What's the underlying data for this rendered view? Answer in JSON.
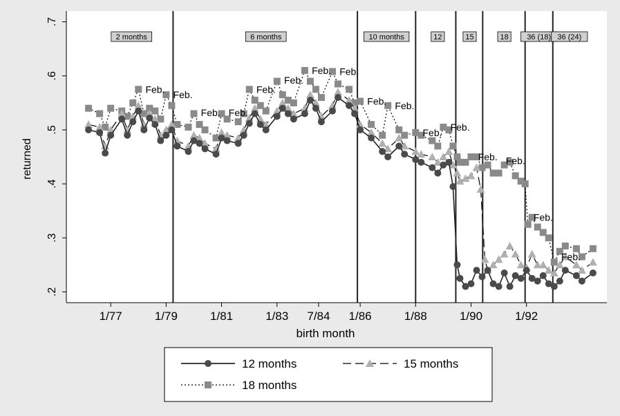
{
  "chart_data": {
    "type": "line",
    "xlabel": "birth month",
    "ylabel": "returned",
    "ylim": [
      0.18,
      0.72
    ],
    "y_ticks": [
      0.2,
      0.3,
      0.4,
      0.5,
      0.6,
      0.7
    ],
    "y_tick_labels": [
      ".2",
      ".3",
      ".4",
      ".5",
      ".6",
      ".7"
    ],
    "x_ticks": [
      1977.0,
      1979.0,
      1981.0,
      1983.0,
      1984.5,
      1986.0,
      1988.0,
      1990.0,
      1992.0
    ],
    "x_tick_labels": [
      "1/77",
      "1/79",
      "1/81",
      "1/83",
      "7/84",
      "1/86",
      "1/88",
      "1/90",
      "1/92"
    ],
    "xlim": [
      1975.4,
      1994.9
    ],
    "grid": false,
    "legend_position": "bottom",
    "vlines": [
      1979.25,
      1985.9,
      1988.0,
      1989.45,
      1990.42,
      1991.95,
      1992.95
    ],
    "regimes": [
      {
        "label": "2 months",
        "x": 1977.75
      },
      {
        "label": "6 months",
        "x": 1982.6
      },
      {
        "label": "10 months",
        "x": 1986.95
      },
      {
        "label": "12",
        "x": 1988.8
      },
      {
        "label": "15",
        "x": 1989.95
      },
      {
        "label": "18",
        "x": 1991.2
      },
      {
        "label": "36 (18)",
        "x": 1992.45
      },
      {
        "label": "36 (24)",
        "x": 1993.55
      }
    ],
    "annotations": [
      {
        "text": "Feb.",
        "x": 1978.08,
        "y": 0.575
      },
      {
        "text": "Feb.",
        "x": 1979.08,
        "y": 0.565
      },
      {
        "text": "Feb.",
        "x": 1980.08,
        "y": 0.532
      },
      {
        "text": "Feb.",
        "x": 1981.08,
        "y": 0.532
      },
      {
        "text": "Feb.",
        "x": 1982.08,
        "y": 0.575
      },
      {
        "text": "Feb.",
        "x": 1983.08,
        "y": 0.592
      },
      {
        "text": "Feb.",
        "x": 1984.08,
        "y": 0.61
      },
      {
        "text": "Feb.",
        "x": 1985.08,
        "y": 0.608
      },
      {
        "text": "Feb.",
        "x": 1986.08,
        "y": 0.553
      },
      {
        "text": "Feb.",
        "x": 1987.08,
        "y": 0.545
      },
      {
        "text": "Feb.",
        "x": 1988.08,
        "y": 0.495
      },
      {
        "text": "Feb.",
        "x": 1989.08,
        "y": 0.505
      },
      {
        "text": "Feb.",
        "x": 1990.08,
        "y": 0.45
      },
      {
        "text": "Feb.",
        "x": 1991.08,
        "y": 0.443
      },
      {
        "text": "Feb.",
        "x": 1992.08,
        "y": 0.338
      },
      {
        "text": "Feb.",
        "x": 1993.08,
        "y": 0.265
      }
    ],
    "series": [
      {
        "name": "12 months",
        "color": "#4a4a4a",
        "marker": "circle",
        "dash": "solid",
        "points": [
          [
            1976.2,
            0.5
          ],
          [
            1976.6,
            0.495
          ],
          [
            1976.8,
            0.457
          ],
          [
            1977.0,
            0.49
          ],
          [
            1977.4,
            0.52
          ],
          [
            1977.6,
            0.49
          ],
          [
            1977.8,
            0.515
          ],
          [
            1978.0,
            0.535
          ],
          [
            1978.2,
            0.5
          ],
          [
            1978.4,
            0.522
          ],
          [
            1978.6,
            0.51
          ],
          [
            1978.8,
            0.48
          ],
          [
            1979.0,
            0.49
          ],
          [
            1979.2,
            0.5
          ],
          [
            1979.4,
            0.47
          ],
          [
            1979.8,
            0.46
          ],
          [
            1980.0,
            0.48
          ],
          [
            1980.2,
            0.475
          ],
          [
            1980.4,
            0.465
          ],
          [
            1980.8,
            0.455
          ],
          [
            1981.0,
            0.485
          ],
          [
            1981.2,
            0.48
          ],
          [
            1981.6,
            0.475
          ],
          [
            1981.8,
            0.49
          ],
          [
            1982.0,
            0.512
          ],
          [
            1982.2,
            0.53
          ],
          [
            1982.4,
            0.51
          ],
          [
            1982.6,
            0.5
          ],
          [
            1983.0,
            0.525
          ],
          [
            1983.2,
            0.54
          ],
          [
            1983.4,
            0.53
          ],
          [
            1983.6,
            0.52
          ],
          [
            1984.0,
            0.53
          ],
          [
            1984.2,
            0.555
          ],
          [
            1984.4,
            0.54
          ],
          [
            1984.6,
            0.515
          ],
          [
            1985.0,
            0.535
          ],
          [
            1985.2,
            0.56
          ],
          [
            1985.6,
            0.545
          ],
          [
            1985.8,
            0.53
          ],
          [
            1986.0,
            0.5
          ],
          [
            1986.4,
            0.485
          ],
          [
            1986.8,
            0.46
          ],
          [
            1987.0,
            0.45
          ],
          [
            1987.4,
            0.47
          ],
          [
            1987.6,
            0.455
          ],
          [
            1988.0,
            0.445
          ],
          [
            1988.2,
            0.44
          ],
          [
            1988.6,
            0.43
          ],
          [
            1988.8,
            0.42
          ],
          [
            1989.0,
            0.435
          ],
          [
            1989.2,
            0.44
          ],
          [
            1989.35,
            0.395
          ],
          [
            1989.5,
            0.25
          ],
          [
            1989.6,
            0.225
          ],
          [
            1989.8,
            0.21
          ],
          [
            1990.0,
            0.215
          ],
          [
            1990.2,
            0.24
          ],
          [
            1990.4,
            0.228
          ],
          [
            1990.6,
            0.24
          ],
          [
            1990.8,
            0.215
          ],
          [
            1991.0,
            0.21
          ],
          [
            1991.2,
            0.235
          ],
          [
            1991.4,
            0.21
          ],
          [
            1991.6,
            0.23
          ],
          [
            1991.8,
            0.225
          ],
          [
            1992.0,
            0.24
          ],
          [
            1992.2,
            0.225
          ],
          [
            1992.4,
            0.22
          ],
          [
            1992.6,
            0.23
          ],
          [
            1992.8,
            0.215
          ],
          [
            1993.0,
            0.21
          ],
          [
            1993.2,
            0.22
          ],
          [
            1993.4,
            0.24
          ],
          [
            1993.8,
            0.23
          ],
          [
            1994.0,
            0.22
          ],
          [
            1994.4,
            0.235
          ]
        ]
      },
      {
        "name": "15 months",
        "color": "#b0b0b0",
        "marker": "triangle",
        "dash": "longdash",
        "points": [
          [
            1976.2,
            0.51
          ],
          [
            1976.6,
            0.505
          ],
          [
            1976.8,
            0.47
          ],
          [
            1977.0,
            0.5
          ],
          [
            1977.4,
            0.53
          ],
          [
            1977.6,
            0.5
          ],
          [
            1977.8,
            0.525
          ],
          [
            1978.0,
            0.545
          ],
          [
            1978.2,
            0.51
          ],
          [
            1978.4,
            0.53
          ],
          [
            1978.6,
            0.52
          ],
          [
            1978.8,
            0.49
          ],
          [
            1979.0,
            0.5
          ],
          [
            1979.2,
            0.51
          ],
          [
            1979.4,
            0.48
          ],
          [
            1979.8,
            0.47
          ],
          [
            1980.0,
            0.49
          ],
          [
            1980.2,
            0.485
          ],
          [
            1980.4,
            0.475
          ],
          [
            1980.8,
            0.465
          ],
          [
            1981.0,
            0.495
          ],
          [
            1981.2,
            0.49
          ],
          [
            1981.6,
            0.485
          ],
          [
            1981.8,
            0.5
          ],
          [
            1982.0,
            0.522
          ],
          [
            1982.2,
            0.54
          ],
          [
            1982.4,
            0.52
          ],
          [
            1982.6,
            0.51
          ],
          [
            1983.0,
            0.535
          ],
          [
            1983.2,
            0.55
          ],
          [
            1983.4,
            0.54
          ],
          [
            1983.6,
            0.53
          ],
          [
            1984.0,
            0.54
          ],
          [
            1984.2,
            0.565
          ],
          [
            1984.4,
            0.55
          ],
          [
            1984.6,
            0.525
          ],
          [
            1985.0,
            0.545
          ],
          [
            1985.2,
            0.57
          ],
          [
            1985.6,
            0.555
          ],
          [
            1985.8,
            0.54
          ],
          [
            1986.0,
            0.51
          ],
          [
            1986.4,
            0.495
          ],
          [
            1986.8,
            0.475
          ],
          [
            1987.0,
            0.465
          ],
          [
            1987.4,
            0.485
          ],
          [
            1987.6,
            0.47
          ],
          [
            1988.0,
            0.46
          ],
          [
            1988.2,
            0.455
          ],
          [
            1988.6,
            0.45
          ],
          [
            1988.8,
            0.44
          ],
          [
            1989.0,
            0.45
          ],
          [
            1989.2,
            0.46
          ],
          [
            1989.35,
            0.435
          ],
          [
            1989.5,
            0.42
          ],
          [
            1989.6,
            0.405
          ],
          [
            1989.8,
            0.41
          ],
          [
            1990.0,
            0.415
          ],
          [
            1990.2,
            0.43
          ],
          [
            1990.35,
            0.39
          ],
          [
            1990.5,
            0.26
          ],
          [
            1990.6,
            0.24
          ],
          [
            1990.8,
            0.25
          ],
          [
            1991.0,
            0.26
          ],
          [
            1991.2,
            0.27
          ],
          [
            1991.4,
            0.285
          ],
          [
            1991.6,
            0.27
          ],
          [
            1991.8,
            0.25
          ],
          [
            1992.0,
            0.245
          ],
          [
            1992.2,
            0.27
          ],
          [
            1992.4,
            0.25
          ],
          [
            1992.6,
            0.25
          ],
          [
            1992.8,
            0.24
          ],
          [
            1993.0,
            0.235
          ],
          [
            1993.2,
            0.25
          ],
          [
            1993.4,
            0.265
          ],
          [
            1993.8,
            0.25
          ],
          [
            1994.0,
            0.24
          ],
          [
            1994.4,
            0.255
          ]
        ]
      },
      {
        "name": "18 months",
        "color": "#8a8a8a",
        "marker": "square",
        "dash": "dotted",
        "points": [
          [
            1976.2,
            0.54
          ],
          [
            1976.6,
            0.53
          ],
          [
            1976.8,
            0.505
          ],
          [
            1977.0,
            0.54
          ],
          [
            1977.4,
            0.535
          ],
          [
            1977.6,
            0.525
          ],
          [
            1977.8,
            0.55
          ],
          [
            1978.0,
            0.575
          ],
          [
            1978.2,
            0.53
          ],
          [
            1978.4,
            0.54
          ],
          [
            1978.6,
            0.535
          ],
          [
            1978.8,
            0.52
          ],
          [
            1979.0,
            0.565
          ],
          [
            1979.2,
            0.545
          ],
          [
            1979.4,
            0.51
          ],
          [
            1979.8,
            0.505
          ],
          [
            1980.0,
            0.53
          ],
          [
            1980.2,
            0.51
          ],
          [
            1980.4,
            0.5
          ],
          [
            1980.8,
            0.485
          ],
          [
            1981.0,
            0.53
          ],
          [
            1981.2,
            0.52
          ],
          [
            1981.6,
            0.515
          ],
          [
            1981.8,
            0.53
          ],
          [
            1982.0,
            0.575
          ],
          [
            1982.2,
            0.555
          ],
          [
            1982.4,
            0.545
          ],
          [
            1982.6,
            0.535
          ],
          [
            1983.0,
            0.59
          ],
          [
            1983.2,
            0.565
          ],
          [
            1983.4,
            0.555
          ],
          [
            1983.6,
            0.55
          ],
          [
            1984.0,
            0.61
          ],
          [
            1984.2,
            0.59
          ],
          [
            1984.4,
            0.575
          ],
          [
            1984.6,
            0.56
          ],
          [
            1985.0,
            0.608
          ],
          [
            1985.2,
            0.585
          ],
          [
            1985.6,
            0.575
          ],
          [
            1985.8,
            0.55
          ],
          [
            1986.0,
            0.553
          ],
          [
            1986.4,
            0.51
          ],
          [
            1986.8,
            0.49
          ],
          [
            1987.0,
            0.545
          ],
          [
            1987.4,
            0.5
          ],
          [
            1987.6,
            0.49
          ],
          [
            1988.0,
            0.495
          ],
          [
            1988.2,
            0.49
          ],
          [
            1988.6,
            0.48
          ],
          [
            1988.8,
            0.47
          ],
          [
            1989.0,
            0.505
          ],
          [
            1989.2,
            0.5
          ],
          [
            1989.35,
            0.47
          ],
          [
            1989.5,
            0.45
          ],
          [
            1989.6,
            0.44
          ],
          [
            1989.8,
            0.44
          ],
          [
            1990.0,
            0.45
          ],
          [
            1990.2,
            0.45
          ],
          [
            1990.4,
            0.43
          ],
          [
            1990.6,
            0.435
          ],
          [
            1990.8,
            0.42
          ],
          [
            1991.0,
            0.42
          ],
          [
            1991.2,
            0.435
          ],
          [
            1991.4,
            0.44
          ],
          [
            1991.6,
            0.415
          ],
          [
            1991.8,
            0.405
          ],
          [
            1991.95,
            0.4
          ],
          [
            1992.05,
            0.325
          ],
          [
            1992.2,
            0.338
          ],
          [
            1992.4,
            0.32
          ],
          [
            1992.6,
            0.31
          ],
          [
            1992.8,
            0.3
          ],
          [
            1993.0,
            0.255
          ],
          [
            1993.2,
            0.275
          ],
          [
            1993.4,
            0.285
          ],
          [
            1993.8,
            0.28
          ],
          [
            1994.0,
            0.265
          ],
          [
            1994.4,
            0.28
          ]
        ]
      }
    ]
  }
}
